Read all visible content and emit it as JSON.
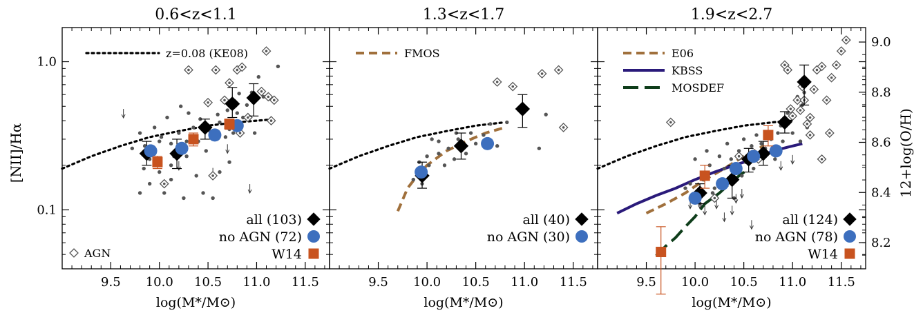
{
  "figure": {
    "left_ylabel": "[NII]/Hα",
    "right_ylabel": "12+log(O/H)",
    "xlabel": "log(M*/M⊙)",
    "right_ticks": [
      "8.2",
      "8.4",
      "8.6",
      "8.8",
      "9.0"
    ]
  },
  "colors": {
    "all": "#000000",
    "noagn": "#3d6fbe",
    "w14": "#c8531f",
    "background_points": "#555555",
    "ke08": "#000000",
    "fmos": "#a0703c",
    "e06": "#a0703c",
    "kbss": "#2a1a7a",
    "mosdef": "#0e3d1a"
  },
  "chart_data": [
    {
      "type": "scatter",
      "title": "0.6<z<1.1",
      "xlim": [
        9.0,
        11.75
      ],
      "ylim": [
        0.04,
        1.7
      ],
      "yscale": "log",
      "x_ticks": [
        "9.5",
        "10.0",
        "10.5",
        "11.0",
        "11.5"
      ],
      "y_ticks": [
        "0.1",
        "1.0"
      ],
      "legend": [
        {
          "label": "all (103)",
          "marker": "diamond",
          "color": "#000000"
        },
        {
          "label": "no AGN (72)",
          "marker": "circle",
          "color": "#3d6fbe"
        },
        {
          "label": "W14",
          "marker": "square",
          "color": "#c8531f"
        }
      ],
      "agn_label": "AGN",
      "curve_legend": [
        {
          "label": "z=0.08 (KE08)",
          "style": "dotted",
          "color": "#000000"
        }
      ],
      "curves": [
        {
          "name": "z=0.08 (KE08)",
          "style": "dotted",
          "color": "#000000",
          "x": [
            9.0,
            9.3,
            9.6,
            9.9,
            10.2,
            10.5,
            10.8,
            11.0,
            11.2
          ],
          "y": [
            0.19,
            0.23,
            0.27,
            0.31,
            0.34,
            0.37,
            0.39,
            0.4,
            0.41
          ]
        }
      ],
      "series": [
        {
          "name": "all (103)",
          "marker": "diamond",
          "x": [
            9.87,
            10.18,
            10.47,
            10.75,
            10.97
          ],
          "y": [
            0.24,
            0.24,
            0.36,
            0.52,
            0.57
          ],
          "yerr_lo": [
            0.04,
            0.05,
            0.06,
            0.1,
            0.14
          ],
          "yerr_hi": [
            0.05,
            0.06,
            0.05,
            0.15,
            0.14
          ]
        },
        {
          "name": "no AGN (72)",
          "marker": "circle",
          "x": [
            9.91,
            10.23,
            10.57,
            10.8
          ],
          "y": [
            0.25,
            0.26,
            0.32,
            0.37
          ]
        },
        {
          "name": "W14",
          "marker": "square",
          "x": [
            9.98,
            10.35,
            10.72
          ],
          "y": [
            0.21,
            0.3,
            0.38
          ],
          "yerr_lo": [
            0.02,
            0.03,
            0.03
          ],
          "yerr_hi": [
            0.02,
            0.03,
            0.03
          ]
        }
      ],
      "agn": {
        "x": [
          10.05,
          10.5,
          10.58,
          10.67,
          10.78,
          10.8,
          10.85,
          10.72,
          11.05,
          11.1,
          11.12,
          11.15,
          11.18,
          10.91,
          10.83,
          10.55,
          10.3
        ],
        "y": [
          0.15,
          0.53,
          0.88,
          0.55,
          0.52,
          0.88,
          0.92,
          0.72,
          0.63,
          1.18,
          0.58,
          0.4,
          0.55,
          0.42,
          0.33,
          0.17,
          0.88
        ]
      },
      "points": {
        "x": [
          9.72,
          9.8,
          9.85,
          9.9,
          9.95,
          10.0,
          10.02,
          10.08,
          10.12,
          10.15,
          10.2,
          10.22,
          10.28,
          10.3,
          10.35,
          10.4,
          10.42,
          10.48,
          10.52,
          10.55,
          10.6,
          10.62,
          10.68,
          10.7,
          10.72,
          10.76,
          10.8,
          10.82,
          10.86,
          10.9,
          10.95,
          10.98,
          11.02,
          11.07,
          11.22,
          9.8,
          9.9,
          10.05,
          10.12,
          10.25,
          10.38,
          10.45,
          10.55,
          10.62,
          10.72,
          9.84,
          10.0,
          10.12,
          10.28
        ],
        "y": [
          0.26,
          0.33,
          0.27,
          0.22,
          0.36,
          0.18,
          0.31,
          0.42,
          0.28,
          0.23,
          0.33,
          0.5,
          0.29,
          0.45,
          0.36,
          0.29,
          0.41,
          0.25,
          0.34,
          0.3,
          0.44,
          0.39,
          0.31,
          0.47,
          0.35,
          0.33,
          0.45,
          0.61,
          0.42,
          0.51,
          0.62,
          0.33,
          0.79,
          0.58,
          0.93,
          0.13,
          0.15,
          0.13,
          0.16,
          0.12,
          0.17,
          0.13,
          0.12,
          0.18,
          0.21,
          0.19,
          0.29,
          0.2,
          0.23
        ]
      },
      "upper_limits": {
        "x": [
          9.63,
          10.2,
          10.55,
          10.7,
          10.93
        ],
        "y": [
          0.45,
          0.2,
          0.18,
          0.26,
          0.14
        ]
      }
    },
    {
      "type": "scatter",
      "title": "1.3<z<1.7",
      "xlim": [
        9.0,
        11.75
      ],
      "ylim": [
        0.04,
        1.7
      ],
      "yscale": "log",
      "x_ticks": [
        "9.5",
        "10.0",
        "10.5",
        "11.0",
        "11.5"
      ],
      "legend": [
        {
          "label": "all (40)",
          "marker": "diamond",
          "color": "#000000"
        },
        {
          "label": "no AGN (30)",
          "marker": "circle",
          "color": "#3d6fbe"
        }
      ],
      "curve_legend": [
        {
          "label": "FMOS",
          "style": "dashed",
          "color": "#a0703c"
        }
      ],
      "curves": [
        {
          "name": "KE08 continuation",
          "style": "dotted",
          "color": "#000000",
          "x": [
            9.0,
            9.3,
            9.6,
            9.9,
            10.2,
            10.5,
            10.8
          ],
          "y": [
            0.19,
            0.23,
            0.27,
            0.31,
            0.34,
            0.37,
            0.39
          ]
        },
        {
          "name": "FMOS",
          "style": "dashed",
          "color": "#a0703c",
          "x": [
            9.7,
            9.8,
            9.9,
            10.0,
            10.2,
            10.4,
            10.6,
            10.8
          ],
          "y": [
            0.098,
            0.14,
            0.17,
            0.2,
            0.25,
            0.29,
            0.33,
            0.36
          ]
        }
      ],
      "series": [
        {
          "name": "all (40)",
          "marker": "diamond",
          "x": [
            9.95,
            10.35,
            10.98
          ],
          "y": [
            0.17,
            0.27,
            0.48
          ],
          "yerr_lo": [
            0.03,
            0.05,
            0.12
          ],
          "yerr_hi": [
            0.04,
            0.06,
            0.12
          ]
        },
        {
          "name": "no AGN (30)",
          "marker": "circle",
          "x": [
            9.94,
            10.62
          ],
          "y": [
            0.18,
            0.28
          ]
        }
      ],
      "agn": {
        "x": [
          10.72,
          10.88,
          11.18,
          11.35,
          11.4
        ],
        "y": [
          0.73,
          0.68,
          0.83,
          0.88,
          0.36
        ]
      },
      "points": {
        "x": [
          9.86,
          9.92,
          10.0,
          10.05,
          10.12,
          10.18,
          10.22,
          10.28,
          10.32,
          10.4,
          10.45,
          10.5,
          10.58,
          10.65,
          10.72,
          10.82,
          11.15,
          11.22,
          9.95,
          10.02,
          10.12,
          10.3
        ],
        "y": [
          0.16,
          0.21,
          0.23,
          0.3,
          0.24,
          0.2,
          0.26,
          0.22,
          0.3,
          0.24,
          0.33,
          0.28,
          0.32,
          0.38,
          0.27,
          0.39,
          0.26,
          0.44,
          0.15,
          0.2,
          0.29,
          0.33
        ]
      }
    },
    {
      "type": "scatter",
      "title": "1.9<z<2.7",
      "xlim": [
        9.0,
        11.75
      ],
      "ylim": [
        0.04,
        1.7
      ],
      "yscale": "log",
      "x_ticks": [
        "9.5",
        "10.0",
        "10.5",
        "11.0",
        "11.5"
      ],
      "legend": [
        {
          "label": "all (124)",
          "marker": "diamond",
          "color": "#000000"
        },
        {
          "label": "no AGN (78)",
          "marker": "circle",
          "color": "#3d6fbe"
        },
        {
          "label": "W14",
          "marker": "square",
          "color": "#c8531f"
        }
      ],
      "curve_legend": [
        {
          "label": "E06",
          "style": "dashed",
          "color": "#a0703c"
        },
        {
          "label": "KBSS",
          "style": "solid",
          "color": "#2a1a7a"
        },
        {
          "label": "MOSDEF",
          "style": "longdash",
          "color": "#0e3d1a"
        }
      ],
      "curves": [
        {
          "name": "KE08 continuation",
          "style": "dotted",
          "color": "#000000",
          "x": [
            9.0,
            9.3,
            9.6,
            9.9,
            10.2,
            10.5,
            10.8,
            11.0
          ],
          "y": [
            0.19,
            0.23,
            0.27,
            0.31,
            0.34,
            0.37,
            0.39,
            0.4
          ]
        },
        {
          "name": "E06",
          "style": "dashed",
          "color": "#a0703c",
          "x": [
            9.5,
            9.7,
            9.9,
            10.1,
            10.3,
            10.5,
            10.7
          ],
          "y": [
            0.095,
            0.11,
            0.13,
            0.16,
            0.19,
            0.23,
            0.27
          ]
        },
        {
          "name": "KBSS",
          "style": "solid",
          "color": "#2a1a7a",
          "x": [
            9.2,
            9.4,
            9.6,
            9.8,
            10.0,
            10.2,
            10.4,
            10.6,
            10.8,
            11.0,
            11.1
          ],
          "y": [
            0.095,
            0.11,
            0.125,
            0.14,
            0.16,
            0.18,
            0.2,
            0.22,
            0.25,
            0.27,
            0.28
          ]
        },
        {
          "name": "MOSDEF",
          "style": "longdash",
          "color": "#0e3d1a",
          "x": [
            9.6,
            9.7,
            9.8,
            9.9,
            10.0,
            10.1,
            10.25,
            10.4,
            10.55
          ],
          "y": [
            0.049,
            0.057,
            0.065,
            0.077,
            0.09,
            0.11,
            0.13,
            0.16,
            0.19
          ]
        }
      ],
      "series": [
        {
          "name": "all (124)",
          "marker": "diamond",
          "x": [
            10.05,
            10.38,
            10.55,
            10.7,
            10.92,
            11.12
          ],
          "y": [
            0.13,
            0.16,
            0.22,
            0.24,
            0.39,
            0.73
          ],
          "yerr_lo": [
            0.02,
            0.04,
            0.04,
            0.04,
            0.06,
            0.22
          ],
          "yerr_hi": [
            0.02,
            0.04,
            0.04,
            0.05,
            0.07,
            0.22
          ]
        },
        {
          "name": "no AGN (78)",
          "marker": "circle",
          "x": [
            10.0,
            10.28,
            10.42,
            10.6,
            10.83
          ],
          "y": [
            0.12,
            0.15,
            0.19,
            0.23,
            0.25
          ]
        },
        {
          "name": "W14",
          "marker": "square",
          "x": [
            9.65,
            10.1,
            10.75
          ],
          "y": [
            0.052,
            0.17,
            0.32
          ],
          "yerr_lo": [
            0.025,
            0.03,
            0.05
          ],
          "yerr_hi": [
            0.025,
            0.03,
            0.05
          ]
        }
      ],
      "agn": {
        "x": [
          9.75,
          10.2,
          10.45,
          10.55,
          10.65,
          10.92,
          10.95,
          10.98,
          11.0,
          11.05,
          11.08,
          11.12,
          11.15,
          11.18,
          11.22,
          11.25,
          11.3,
          11.35,
          11.4,
          11.45,
          11.5,
          11.55,
          11.1,
          11.18,
          11.3,
          11.38
        ],
        "y": [
          0.39,
          0.12,
          0.23,
          0.22,
          0.22,
          0.95,
          0.88,
          0.48,
          0.43,
          0.55,
          0.47,
          0.55,
          0.38,
          0.42,
          0.65,
          0.88,
          0.93,
          0.55,
          0.78,
          0.95,
          1.18,
          1.4,
          0.68,
          0.32,
          0.22,
          0.33
        ]
      },
      "points": {
        "x": [
          9.9,
          10.0,
          10.08,
          10.12,
          10.15,
          10.2,
          10.25,
          10.3,
          10.33,
          10.37,
          10.4,
          10.45,
          10.5,
          10.52,
          10.58,
          10.6,
          10.63,
          10.68,
          10.72,
          10.78,
          10.82,
          10.85,
          10.88,
          10.9,
          10.95,
          11.0,
          11.05,
          11.08,
          11.1,
          11.12,
          11.15,
          9.95,
          10.05,
          10.18,
          10.3,
          10.4,
          10.48
        ],
        "y": [
          0.14,
          0.22,
          0.16,
          0.25,
          0.2,
          0.14,
          0.23,
          0.19,
          0.28,
          0.22,
          0.19,
          0.25,
          0.3,
          0.21,
          0.27,
          0.19,
          0.32,
          0.28,
          0.26,
          0.3,
          0.22,
          0.33,
          0.37,
          0.29,
          0.45,
          0.33,
          0.58,
          0.29,
          0.51,
          0.62,
          0.36,
          0.15,
          0.11,
          0.13,
          0.14,
          0.12,
          0.17
        ]
      },
      "upper_limits": {
        "x": [
          9.95,
          10.05,
          10.1,
          10.22,
          10.3,
          10.38,
          10.42,
          10.48,
          10.58,
          10.88,
          11.0
        ],
        "y": [
          0.11,
          0.11,
          0.1,
          0.11,
          0.09,
          0.1,
          0.12,
          0.13,
          0.08,
          0.2,
          0.22
        ]
      }
    }
  ]
}
